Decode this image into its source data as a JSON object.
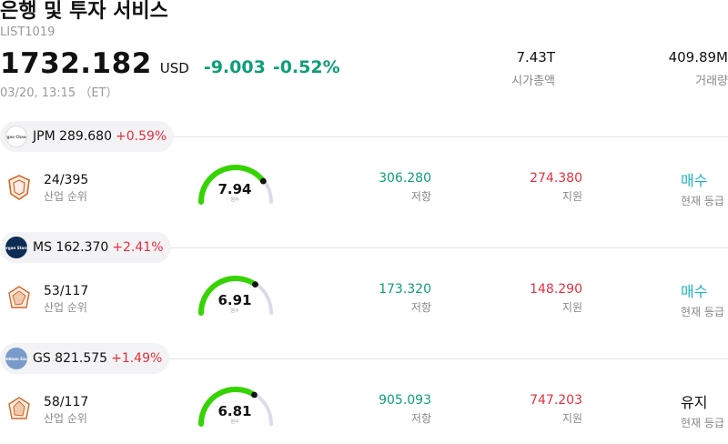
{
  "header": {
    "title": "은행 및 투자 서비스",
    "code": "LIST1019",
    "price": "1732.182",
    "currency": "USD",
    "change": "-9.003",
    "change_pct": "-0.52%",
    "datetime": "03/20, 13:15 （ET）",
    "market_cap_value": "7.43T",
    "market_cap_label": "시가총액",
    "volume_value": "409.89M",
    "volume_label": "거래량"
  },
  "colors": {
    "up": "#e5303e",
    "down": "#0e9e7a",
    "buy": "#1cb5c0",
    "gauge_active": "#35d400",
    "gauge_track": "#dcdce6"
  },
  "stocks": [
    {
      "ticker_price": "JPM 289.680",
      "change_pct": "+0.59%",
      "logo_text": "JPMorgan Chase&Co.",
      "rank": "24/395",
      "rank_label": "산업 순위",
      "score": 7.94,
      "score_label": "점수",
      "resistance": "306.280",
      "resistance_label": "저항",
      "support": "274.380",
      "support_label": "지원",
      "rating": "매수",
      "rating_type": "buy",
      "rating_label": "현재 등급"
    },
    {
      "ticker_price": "MS 162.370",
      "change_pct": "+2.41%",
      "logo_text": "Morgan Stanley",
      "rank": "53/117",
      "rank_label": "산업 순위",
      "score": 6.91,
      "score_label": "점수",
      "resistance": "173.320",
      "resistance_label": "저항",
      "support": "148.290",
      "support_label": "지원",
      "rating": "매수",
      "rating_type": "buy",
      "rating_label": "현재 등급"
    },
    {
      "ticker_price": "GS 821.575",
      "change_pct": "+1.49%",
      "logo_text": "Goldman Sachs",
      "rank": "58/117",
      "rank_label": "산업 순위",
      "score": 6.81,
      "score_label": "점수",
      "resistance": "905.093",
      "resistance_label": "저항",
      "support": "747.203",
      "support_label": "지원",
      "rating": "유지",
      "rating_type": "hold",
      "rating_label": "현재 등급"
    }
  ]
}
